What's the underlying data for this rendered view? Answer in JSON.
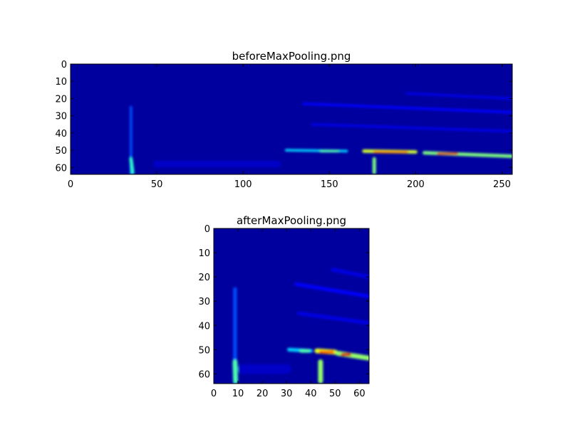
{
  "chart_data": [
    {
      "type": "heatmap",
      "title": "beforeMaxPooling.png",
      "colormap": "jet",
      "background_value": 0.03,
      "xlim": [
        0,
        256
      ],
      "ylim": [
        64,
        0
      ],
      "xticks": [
        "0",
        "50",
        "100",
        "150",
        "200",
        "250"
      ],
      "yticks": [
        "0",
        "10",
        "20",
        "30",
        "40",
        "50",
        "60"
      ],
      "grid": false,
      "features": [
        {
          "x": [
            35,
            35
          ],
          "y": [
            25,
            64
          ],
          "width": 1.5,
          "value": 0.2
        },
        {
          "x": [
            35,
            36
          ],
          "y": [
            55,
            63
          ],
          "width": 2,
          "value": 0.42
        },
        {
          "x": [
            176,
            176
          ],
          "y": [
            55,
            63
          ],
          "width": 2,
          "value": 0.5
        },
        {
          "x": [
            125,
            160
          ],
          "y": [
            50,
            50.5
          ],
          "width": 1.5,
          "value": 0.33
        },
        {
          "x": [
            145,
            155
          ],
          "y": [
            50.5,
            50.5
          ],
          "width": 1.5,
          "value": 0.45
        },
        {
          "x": [
            170,
            200
          ],
          "y": [
            50.5,
            51
          ],
          "width": 2,
          "value": 0.58
        },
        {
          "x": [
            176,
            195
          ],
          "y": [
            51,
            51
          ],
          "width": 1.3,
          "value": 0.75
        },
        {
          "x": [
            205,
            256
          ],
          "y": [
            51.5,
            53.5
          ],
          "width": 2,
          "value": 0.5
        },
        {
          "x": [
            213,
            224
          ],
          "y": [
            52,
            52
          ],
          "width": 1.3,
          "value": 0.9
        },
        {
          "x": [
            135,
            256
          ],
          "y": [
            23,
            28
          ],
          "width": 1.5,
          "value": 0.13
        },
        {
          "x": [
            195,
            256
          ],
          "y": [
            17,
            20
          ],
          "width": 1.5,
          "value": 0.1
        },
        {
          "x": [
            140,
            256
          ],
          "y": [
            35,
            39
          ],
          "width": 1.5,
          "value": 0.1
        },
        {
          "x": [
            50,
            120
          ],
          "y": [
            58,
            58
          ],
          "width": 4,
          "value": 0.07
        }
      ]
    },
    {
      "type": "heatmap",
      "title": "afterMaxPooling.png",
      "colormap": "jet",
      "background_value": 0.03,
      "xlim": [
        0,
        64
      ],
      "ylim": [
        64,
        0
      ],
      "xticks": [
        "0",
        "10",
        "20",
        "30",
        "40",
        "50",
        "60"
      ],
      "yticks": [
        "0",
        "10",
        "20",
        "30",
        "40",
        "50",
        "60"
      ],
      "grid": false,
      "features": [
        {
          "x": [
            8.75,
            8.75
          ],
          "y": [
            25,
            64
          ],
          "width": 1.5,
          "value": 0.2
        },
        {
          "x": [
            8.75,
            9
          ],
          "y": [
            55,
            63
          ],
          "width": 2,
          "value": 0.45
        },
        {
          "x": [
            44,
            44
          ],
          "y": [
            55,
            63
          ],
          "width": 2,
          "value": 0.52
        },
        {
          "x": [
            31,
            40
          ],
          "y": [
            50,
            50.5
          ],
          "width": 1.5,
          "value": 0.33
        },
        {
          "x": [
            36,
            39
          ],
          "y": [
            50.5,
            50.5
          ],
          "width": 1.5,
          "value": 0.45
        },
        {
          "x": [
            42.5,
            50
          ],
          "y": [
            50.5,
            51
          ],
          "width": 2,
          "value": 0.6
        },
        {
          "x": [
            44,
            49
          ],
          "y": [
            51,
            51
          ],
          "width": 1.3,
          "value": 0.78
        },
        {
          "x": [
            51,
            64
          ],
          "y": [
            51.5,
            53.5
          ],
          "width": 2,
          "value": 0.52
        },
        {
          "x": [
            53,
            56
          ],
          "y": [
            52,
            52
          ],
          "width": 1.3,
          "value": 0.92
        },
        {
          "x": [
            34,
            64
          ],
          "y": [
            23,
            28
          ],
          "width": 1.5,
          "value": 0.13
        },
        {
          "x": [
            49,
            64
          ],
          "y": [
            17,
            20
          ],
          "width": 1.5,
          "value": 0.1
        },
        {
          "x": [
            35,
            64
          ],
          "y": [
            35,
            39
          ],
          "width": 1.5,
          "value": 0.1
        },
        {
          "x": [
            12,
            30
          ],
          "y": [
            58,
            58
          ],
          "width": 4,
          "value": 0.07
        }
      ]
    }
  ]
}
